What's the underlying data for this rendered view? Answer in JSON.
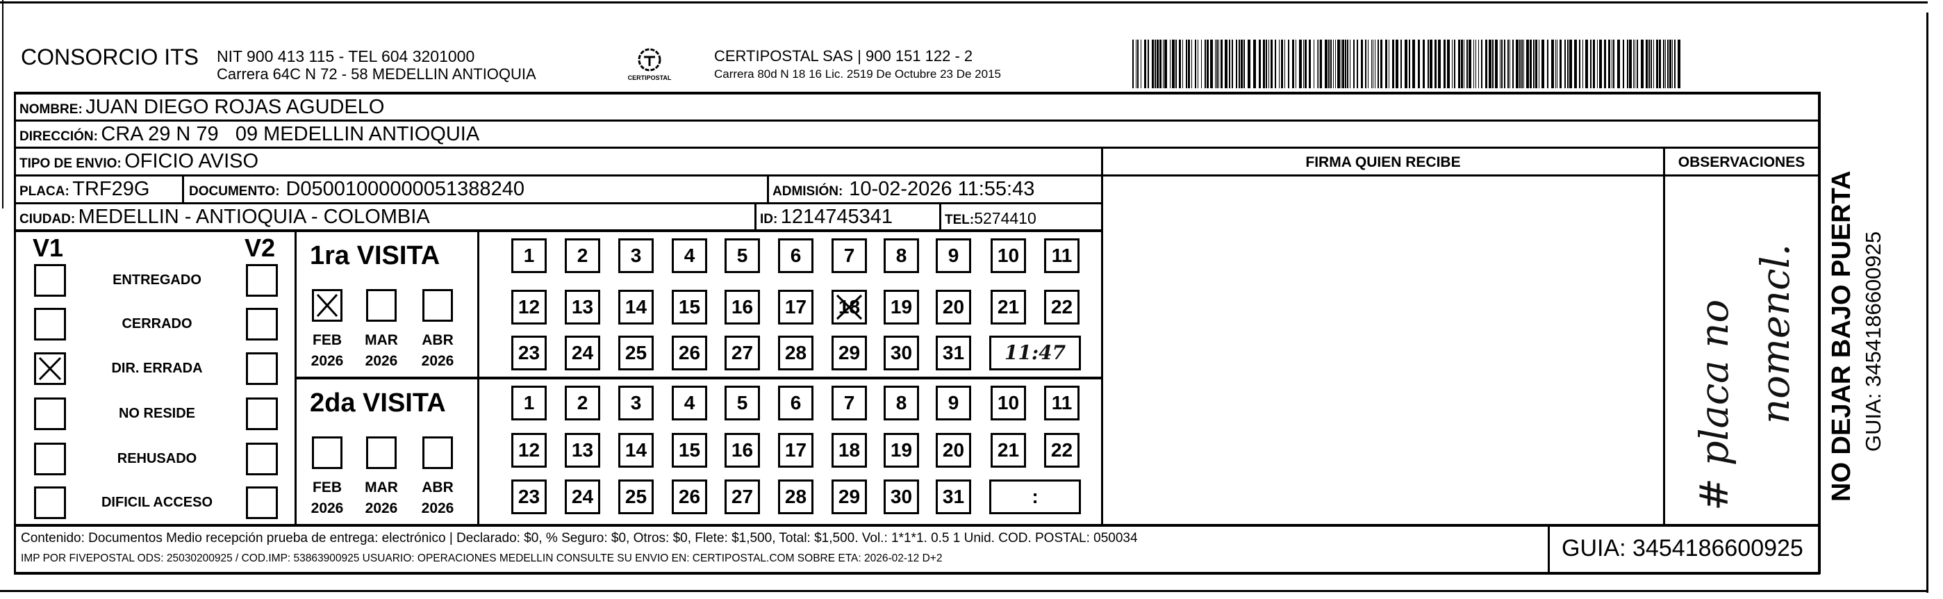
{
  "header": {
    "sender_name": "CONSORCIO ITS",
    "sender_nit": "NIT 900 413 115 - TEL 604 3201000",
    "sender_address": "Carrera 64C N 72 - 58 MEDELLIN ANTIOQUIA",
    "logo_text": "CERTIPOSTAL",
    "carrier_line1": "CERTIPOSTAL SAS | 900 151 122 - 2",
    "carrier_line2": "Carrera 80d N 18 16  Lic. 2519 De Octubre 23 De 2015"
  },
  "recipient": {
    "nombre_label": "NOMBRE:",
    "nombre": "JUAN DIEGO ROJAS AGUDELO",
    "direccion_label": "DIRECCIÓN:",
    "direccion": "CRA 29 N 79   09 MEDELLIN ANTIOQUIA",
    "tipo_label": "TIPO DE ENVIO:",
    "tipo": "OFICIO AVISO",
    "placa_label": "PLACA:",
    "placa": "TRF29G",
    "documento_label": "DOCUMENTO:",
    "documento": "D05001000000051388240",
    "admision_label": "ADMISIÓN:",
    "admision": "10-02-2026 11:55:43",
    "ciudad_label": "CIUDAD:",
    "ciudad": "MEDELLIN - ANTIOQUIA - COLOMBIA",
    "id_label": "ID:",
    "id": "1214745341",
    "tel_label": "TEL:",
    "tel": "5274410"
  },
  "columns": {
    "firma": "FIRMA QUIEN RECIBE",
    "observaciones": "OBSERVACIONES",
    "observaciones_handwritten_1": "# placa no",
    "observaciones_handwritten_2": "nomencl."
  },
  "status": {
    "v1_label": "V1",
    "v2_label": "V2",
    "items": [
      {
        "label": "ENTREGADO",
        "v1": false,
        "v2": false
      },
      {
        "label": "CERRADO",
        "v1": false,
        "v2": false
      },
      {
        "label": "DIR. ERRADA",
        "v1": true,
        "v2": false
      },
      {
        "label": "NO RESIDE",
        "v1": false,
        "v2": false
      },
      {
        "label": "REHUSADO",
        "v1": false,
        "v2": false
      },
      {
        "label": "DIFICIL ACCESO",
        "v1": false,
        "v2": false
      }
    ]
  },
  "visits": [
    {
      "title": "1ra VISITA",
      "months": [
        {
          "m": "FEB",
          "y": "2026",
          "checked": true
        },
        {
          "m": "MAR",
          "y": "2026",
          "checked": false
        },
        {
          "m": "ABR",
          "y": "2026",
          "checked": false
        }
      ],
      "marked_day": 18,
      "time": "11:47"
    },
    {
      "title": "2da VISITA",
      "months": [
        {
          "m": "FEB",
          "y": "2026",
          "checked": false
        },
        {
          "m": "MAR",
          "y": "2026",
          "checked": false
        },
        {
          "m": "ABR",
          "y": "2026",
          "checked": false
        }
      ],
      "marked_day": null,
      "time": ":"
    }
  ],
  "footer": {
    "contenido": "Contenido: Documentos Medio recepción prueba de entrega: electrónico | Declarado: $0, % Seguro: $0, Otros: $0, Flete: $1,500, Total: $1,500. Vol.: 1*1*1. 0.5  1 Unid. COD. POSTAL: 050034",
    "imp": "IMP POR FIVEPOSTAL ODS: 25030200925 / COD.IMP: 53863900925 USUARIO: OPERACIONES MEDELLIN CONSULTE SU ENVIO EN: CERTIPOSTAL.COM SOBRE ETA: 2026-02-12 D+2",
    "guia": "GUIA: 3454186600925"
  },
  "side": {
    "warning": "NO DEJAR BAJO PUERTA",
    "guia": "GUIA: 3454186600925"
  }
}
